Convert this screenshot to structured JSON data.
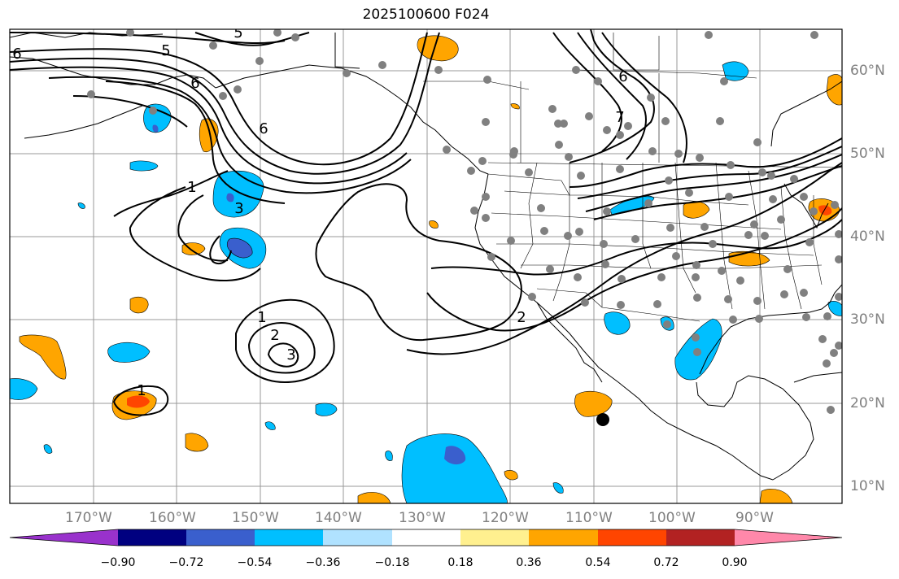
{
  "title": "2025100600 F024",
  "longitude_labels": [
    "170°W",
    "160°W",
    "150°W",
    "140°W",
    "130°W",
    "120°W",
    "110°W",
    "100°W",
    "90°W"
  ],
  "latitude_labels": [
    "60°N",
    "50°N",
    "40°N",
    "30°N",
    "20°N",
    "10°N"
  ],
  "colorbar": {
    "tick_labels": [
      "−0.90",
      "−0.72",
      "−0.54",
      "−0.36",
      "−0.18",
      "0.18",
      "0.36",
      "0.54",
      "0.72",
      "0.90"
    ],
    "colors": [
      "#9932cc",
      "#000080",
      "#3a5fcd",
      "#00bfff",
      "#b0e2ff",
      "#ffffff",
      "#fff08f",
      "#ffa500",
      "#ff4500",
      "#b22222",
      "#ff88aa"
    ]
  },
  "contour_labels": [
    "6",
    "5",
    "5",
    "6",
    "1",
    "3",
    "6",
    "1",
    "2",
    "3",
    "1",
    "2",
    "7",
    "6"
  ],
  "colors": {
    "axis_text": "#808080",
    "grid": "#999999",
    "contour": "#000000",
    "station_dot": "#808080"
  }
}
